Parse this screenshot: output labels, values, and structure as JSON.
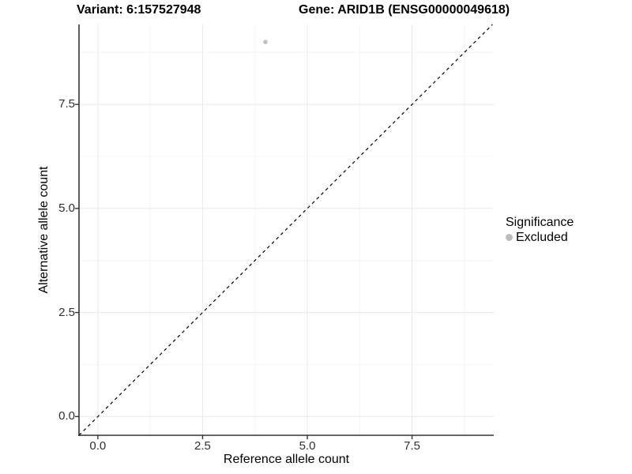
{
  "title": {
    "variant": "Variant: 6:157527948",
    "gene": "Gene: ARID1B (ENSG00000049618)"
  },
  "chart_data": {
    "type": "scatter",
    "title": "Variant: 6:157527948    Gene: ARID1B (ENSG00000049618)",
    "xlabel": "Reference allele count",
    "ylabel": "Alternative allele count",
    "xlim": [
      -0.45,
      9.45
    ],
    "ylim": [
      -0.45,
      9.42
    ],
    "x_ticks": [
      0.0,
      2.5,
      5.0,
      7.5
    ],
    "x_tick_labels": [
      "0.0",
      "2.5",
      "5.0",
      "7.5"
    ],
    "y_ticks": [
      0.0,
      2.5,
      5.0,
      7.5
    ],
    "y_tick_labels": [
      "0.0",
      "2.5",
      "5.0",
      "7.5"
    ],
    "minor_x_ticks": [
      1.25,
      3.75,
      6.25,
      8.75
    ],
    "minor_y_ticks": [
      1.25,
      3.75,
      6.25,
      8.75
    ],
    "grid": true,
    "series": [
      {
        "name": "Excluded",
        "color": "#c0c0c0",
        "points": [
          {
            "x": 4,
            "y": 9
          }
        ]
      }
    ],
    "diagonal": {
      "slope": 1,
      "intercept": 0,
      "style": "dashed",
      "color": "#000000"
    },
    "legend": {
      "title": "Significance",
      "position": "right",
      "entries": [
        {
          "label": "Excluded",
          "color": "#bdbdbd",
          "marker": "circle"
        }
      ]
    }
  },
  "colors": {
    "background": "#ffffff",
    "grid_major": "#e8e8e8",
    "grid_minor": "#f4f4f4",
    "axis": "#333333",
    "tick_label": "#303030",
    "point": "#c0c0c0",
    "legend_dot": "#bdbdbd",
    "identity_line": "#000000"
  }
}
